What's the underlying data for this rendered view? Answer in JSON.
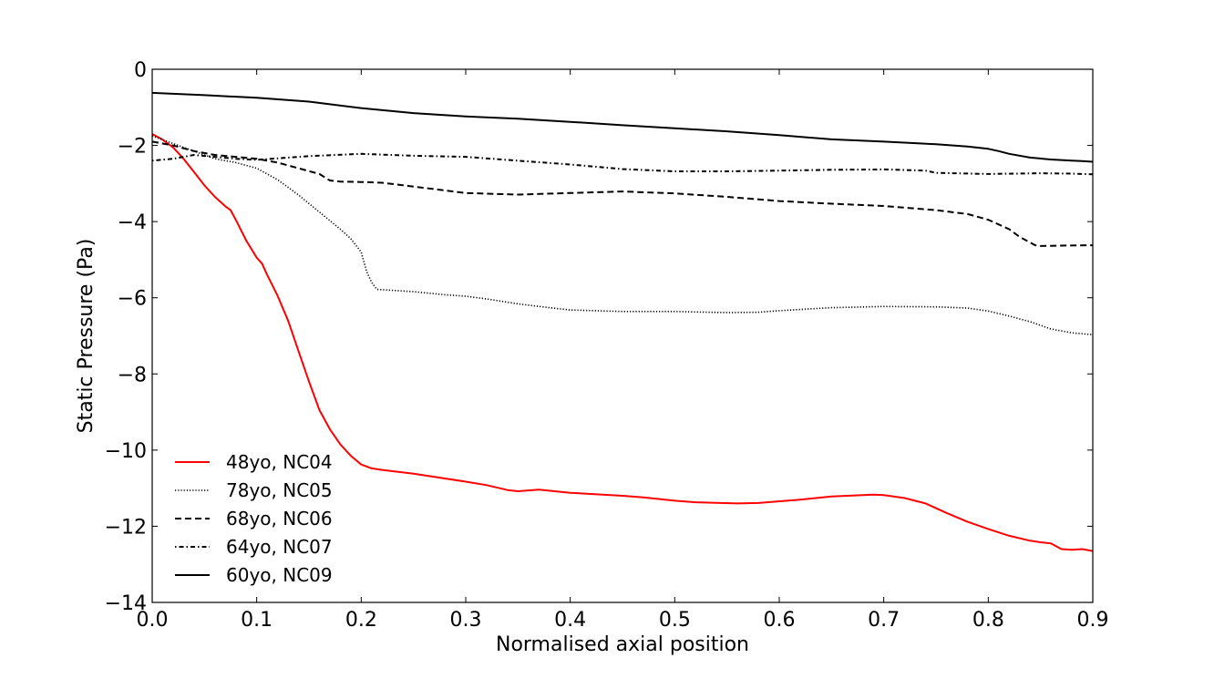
{
  "chart_data": {
    "type": "line",
    "title": "",
    "xlabel": "Normalised axial position",
    "ylabel": "Static Pressure (Pa)",
    "xlim": [
      0.0,
      0.9
    ],
    "ylim": [
      -14,
      0
    ],
    "xticks": [
      "0.0",
      "0.1",
      "0.2",
      "0.3",
      "0.4",
      "0.5",
      "0.6",
      "0.7",
      "0.8",
      "0.9"
    ],
    "yticks": [
      "0",
      "−2",
      "−4",
      "−6",
      "−8",
      "−10",
      "−12",
      "−14"
    ],
    "grid": false,
    "legend_position": "lower-left",
    "series": [
      {
        "name": "48yo, NC04",
        "color": "#ff0000",
        "style": "solid",
        "x": [
          0.0,
          0.01,
          0.02,
          0.03,
          0.04,
          0.05,
          0.06,
          0.07,
          0.075,
          0.08,
          0.09,
          0.1,
          0.105,
          0.11,
          0.12,
          0.13,
          0.14,
          0.15,
          0.16,
          0.17,
          0.18,
          0.19,
          0.2,
          0.21,
          0.22,
          0.25,
          0.3,
          0.32,
          0.34,
          0.35,
          0.37,
          0.4,
          0.45,
          0.47,
          0.5,
          0.52,
          0.56,
          0.58,
          0.62,
          0.65,
          0.69,
          0.7,
          0.72,
          0.74,
          0.76,
          0.78,
          0.8,
          0.82,
          0.84,
          0.85,
          0.86,
          0.87,
          0.88,
          0.89,
          0.9
        ],
        "y": [
          -1.7,
          -1.85,
          -2.05,
          -2.35,
          -2.7,
          -3.05,
          -3.35,
          -3.6,
          -3.7,
          -3.95,
          -4.5,
          -4.95,
          -5.1,
          -5.4,
          -5.95,
          -6.6,
          -7.4,
          -8.2,
          -8.95,
          -9.45,
          -9.85,
          -10.15,
          -10.38,
          -10.48,
          -10.52,
          -10.62,
          -10.83,
          -10.92,
          -11.05,
          -11.08,
          -11.04,
          -11.12,
          -11.2,
          -11.24,
          -11.33,
          -11.37,
          -11.4,
          -11.39,
          -11.3,
          -11.22,
          -11.17,
          -11.18,
          -11.26,
          -11.4,
          -11.65,
          -11.88,
          -12.07,
          -12.25,
          -12.38,
          -12.42,
          -12.45,
          -12.6,
          -12.62,
          -12.6,
          -12.65
        ]
      },
      {
        "name": "78yo, NC05",
        "color": "#000000",
        "style": "dotted",
        "x": [
          0.0,
          0.02,
          0.04,
          0.06,
          0.08,
          0.1,
          0.12,
          0.14,
          0.16,
          0.18,
          0.19,
          0.2,
          0.205,
          0.21,
          0.215,
          0.25,
          0.28,
          0.3,
          0.32,
          0.35,
          0.38,
          0.4,
          0.45,
          0.5,
          0.55,
          0.58,
          0.6,
          0.65,
          0.7,
          0.75,
          0.78,
          0.8,
          0.82,
          0.84,
          0.86,
          0.88,
          0.9
        ],
        "y": [
          -1.75,
          -1.95,
          -2.15,
          -2.35,
          -2.45,
          -2.6,
          -2.9,
          -3.3,
          -3.75,
          -4.2,
          -4.45,
          -4.8,
          -5.3,
          -5.6,
          -5.78,
          -5.84,
          -5.92,
          -5.96,
          -6.03,
          -6.16,
          -6.26,
          -6.32,
          -6.36,
          -6.36,
          -6.39,
          -6.38,
          -6.34,
          -6.26,
          -6.23,
          -6.24,
          -6.27,
          -6.35,
          -6.48,
          -6.63,
          -6.82,
          -6.92,
          -6.97
        ]
      },
      {
        "name": "68yo, NC06",
        "color": "#000000",
        "style": "dashed",
        "x": [
          0.0,
          0.02,
          0.04,
          0.06,
          0.08,
          0.1,
          0.12,
          0.14,
          0.16,
          0.17,
          0.18,
          0.2,
          0.22,
          0.25,
          0.3,
          0.35,
          0.4,
          0.45,
          0.5,
          0.55,
          0.6,
          0.65,
          0.7,
          0.75,
          0.78,
          0.8,
          0.82,
          0.83,
          0.84,
          0.845,
          0.85,
          0.87,
          0.9
        ],
        "y": [
          -1.9,
          -2.0,
          -2.15,
          -2.25,
          -2.3,
          -2.35,
          -2.45,
          -2.6,
          -2.75,
          -2.92,
          -2.95,
          -2.96,
          -2.98,
          -3.08,
          -3.25,
          -3.29,
          -3.25,
          -3.21,
          -3.26,
          -3.35,
          -3.46,
          -3.53,
          -3.59,
          -3.7,
          -3.8,
          -3.95,
          -4.2,
          -4.4,
          -4.55,
          -4.62,
          -4.64,
          -4.63,
          -4.62
        ]
      },
      {
        "name": "64yo, NC07",
        "color": "#000000",
        "style": "dashdot",
        "x": [
          0.0,
          0.02,
          0.04,
          0.06,
          0.08,
          0.1,
          0.15,
          0.2,
          0.25,
          0.3,
          0.35,
          0.4,
          0.45,
          0.5,
          0.55,
          0.6,
          0.65,
          0.7,
          0.74,
          0.75,
          0.8,
          0.85,
          0.88,
          0.9
        ],
        "y": [
          -2.4,
          -2.35,
          -2.25,
          -2.3,
          -2.35,
          -2.38,
          -2.28,
          -2.22,
          -2.27,
          -2.3,
          -2.4,
          -2.5,
          -2.62,
          -2.68,
          -2.68,
          -2.66,
          -2.64,
          -2.63,
          -2.66,
          -2.72,
          -2.75,
          -2.73,
          -2.74,
          -2.76
        ]
      },
      {
        "name": "60yo, NC09",
        "color": "#000000",
        "style": "solid",
        "x": [
          0.0,
          0.05,
          0.1,
          0.15,
          0.2,
          0.25,
          0.3,
          0.35,
          0.4,
          0.45,
          0.5,
          0.55,
          0.6,
          0.65,
          0.7,
          0.75,
          0.78,
          0.8,
          0.81,
          0.82,
          0.84,
          0.86,
          0.88,
          0.89,
          0.9
        ],
        "y": [
          -0.62,
          -0.68,
          -0.75,
          -0.85,
          -1.02,
          -1.15,
          -1.24,
          -1.3,
          -1.38,
          -1.47,
          -1.55,
          -1.63,
          -1.73,
          -1.84,
          -1.9,
          -1.97,
          -2.03,
          -2.09,
          -2.15,
          -2.22,
          -2.32,
          -2.37,
          -2.4,
          -2.41,
          -2.43
        ]
      }
    ]
  }
}
